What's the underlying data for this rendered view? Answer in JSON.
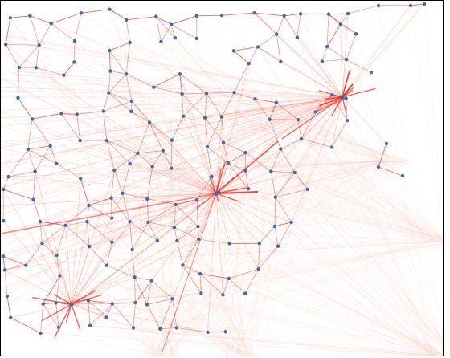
{
  "colors": {
    "background": "#ffffff",
    "border": "#000000",
    "edge_faint": "#fbb6a6",
    "edge_mid": "#f47a68",
    "edge_strong": "#e8322a",
    "node": "#3a6ea5"
  },
  "graph": {
    "type": "network-map",
    "hubs": [
      "hub-east",
      "hub-center",
      "hub-southwest"
    ],
    "node_count": 215,
    "fan_origin": "bottom-right"
  }
}
